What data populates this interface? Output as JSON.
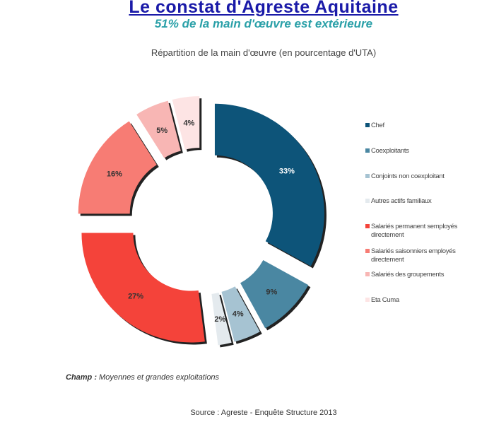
{
  "header": {
    "title": "Le constat d'Agreste Aquitaine",
    "subtitle": "51% de la main d'œuvre est extérieure"
  },
  "chart_data": {
    "type": "pie",
    "variant": "donut-exploded",
    "title": "Répartition de la main d'œuvre (en pourcentage d'UTA)",
    "legend_position": "right",
    "slices": [
      {
        "label": "Chef",
        "value": 33,
        "data_label": "33%",
        "color": "#0d5479"
      },
      {
        "label": "Coexploitants",
        "value": 9,
        "data_label": "9%",
        "color": "#4a87a2"
      },
      {
        "label": "Conjoints non coexploitant",
        "value": 4,
        "data_label": "4%",
        "color": "#a6c3d2"
      },
      {
        "label": "Autres actifs familiaux",
        "value": 2,
        "data_label": "2%",
        "color": "#e4eaee"
      },
      {
        "label": "Salariés permanent semployés directement",
        "value": 27,
        "data_label": "27%",
        "color": "#f4433a"
      },
      {
        "label": "Salariés saisonniers employés directement",
        "value": 16,
        "data_label": "16%",
        "color": "#f77c74"
      },
      {
        "label": "Salariés des groupements",
        "value": 5,
        "data_label": "5%",
        "color": "#f8b6b4"
      },
      {
        "label": "Eta Cuma",
        "value": 4,
        "data_label": "4%",
        "color": "#fde4e4"
      }
    ]
  },
  "footer": {
    "champ_label": "Champ :",
    "champ_text": " Moyennes et grandes exploitations",
    "source": "Source : Agreste - Enquête Structure 2013"
  }
}
